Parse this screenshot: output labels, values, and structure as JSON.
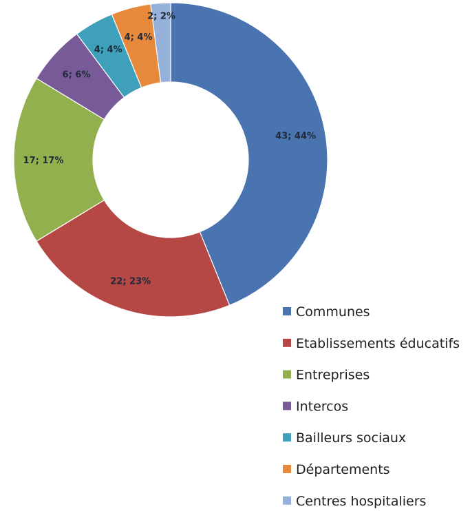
{
  "chart_data": {
    "type": "pie",
    "categories": [
      "Communes",
      "Etablissements éducatifs",
      "Entreprises",
      "Intercos",
      "Bailleurs sociaux",
      "Départements",
      "Centres hospitaliers"
    ],
    "values": [
      43,
      22,
      17,
      6,
      4,
      4,
      2
    ],
    "percentages": [
      44,
      23,
      17,
      6,
      4,
      4,
      2
    ],
    "data_labels": [
      "43; 44%",
      "22; 23%",
      "17; 17%",
      "6; 6%",
      "4; 4%",
      "4; 4%",
      "2; 2%"
    ],
    "colors": [
      "#4a74b0",
      "#b54745",
      "#93b04e",
      "#775a97",
      "#3fa0bc",
      "#e7893a",
      "#95b0d9"
    ],
    "title": "",
    "legend_position": "bottom-right",
    "donut": true
  }
}
